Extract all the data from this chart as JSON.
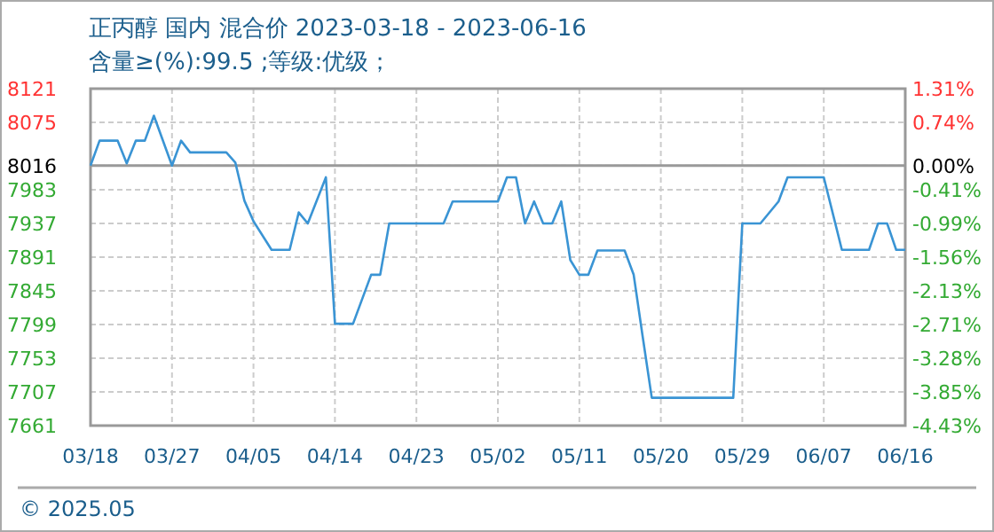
{
  "chart_data": {
    "type": "line",
    "title": "正丙醇 国内 混合价 2023-03-18 - 2023-06-16",
    "subtitle": "含量≥(%):99.5 ;等级:优级；",
    "annotations": [
      "© 2025.05"
    ],
    "x": [
      "2023-03-18",
      "2023-03-19",
      "2023-03-21",
      "2023-03-22",
      "2023-03-23",
      "2023-03-24",
      "2023-03-25",
      "2023-03-27",
      "2023-03-28",
      "2023-03-29",
      "2023-04-02",
      "2023-04-03",
      "2023-04-04",
      "2023-04-05",
      "2023-04-07",
      "2023-04-09",
      "2023-04-10",
      "2023-04-11",
      "2023-04-13",
      "2023-04-14",
      "2023-04-16",
      "2023-04-18",
      "2023-04-19",
      "2023-04-20",
      "2023-04-26",
      "2023-04-27",
      "2023-05-02",
      "2023-05-03",
      "2023-05-04",
      "2023-05-05",
      "2023-05-06",
      "2023-05-07",
      "2023-05-08",
      "2023-05-09",
      "2023-05-10",
      "2023-05-11",
      "2023-05-12",
      "2023-05-13",
      "2023-05-16",
      "2023-05-17",
      "2023-05-18",
      "2023-05-19",
      "2023-05-28",
      "2023-05-29",
      "2023-05-31",
      "2023-06-02",
      "2023-06-03",
      "2023-06-07",
      "2023-06-09",
      "2023-06-12",
      "2023-06-13",
      "2023-06-14",
      "2023-06-15",
      "2023-06-16"
    ],
    "series": [
      {
        "color": "#3a94d4",
        "values": [
          8016,
          8050,
          8050,
          8019,
          8050,
          8050,
          8084,
          8016,
          8050,
          8034,
          8034,
          8020,
          7968,
          7940,
          7901,
          7901,
          7952,
          7937,
          8000,
          7800,
          7800,
          7867,
          7867,
          7937,
          7937,
          7967,
          7967,
          8000,
          8000,
          7937,
          7967,
          7937,
          7937,
          7967,
          7887,
          7867,
          7867,
          7900,
          7900,
          7867,
          7782,
          7699,
          7699,
          7937,
          7937,
          7967,
          8000,
          8000,
          7901,
          7901,
          7937,
          7937,
          7901,
          7901
        ]
      }
    ],
    "xlim": [
      "2023-03-18",
      "2023-06-16"
    ],
    "xticks": [
      {
        "value": "2023-03-18",
        "label": "03/18"
      },
      {
        "value": "2023-03-27",
        "label": "03/27"
      },
      {
        "value": "2023-04-05",
        "label": "04/05"
      },
      {
        "value": "2023-04-14",
        "label": "04/14"
      },
      {
        "value": "2023-04-23",
        "label": "04/23"
      },
      {
        "value": "2023-05-02",
        "label": "05/02"
      },
      {
        "value": "2023-05-11",
        "label": "05/11"
      },
      {
        "value": "2023-05-20",
        "label": "05/20"
      },
      {
        "value": "2023-05-29",
        "label": "05/29"
      },
      {
        "value": "2023-06-07",
        "label": "06/07"
      },
      {
        "value": "2023-06-16",
        "label": "06/16"
      }
    ],
    "ylim": [
      7661,
      8121
    ],
    "yticks": [
      7661,
      7707,
      7753,
      7799,
      7845,
      7891,
      7937,
      7983,
      8016,
      8075,
      8121
    ],
    "y2lim": [
      -4.43,
      1.31
    ],
    "y2ticks": [
      {
        "value": -4.43,
        "label": "-4.43%"
      },
      {
        "value": -3.85,
        "label": "-3.85%"
      },
      {
        "value": -3.28,
        "label": "-3.28%"
      },
      {
        "value": -2.71,
        "label": "-2.71%"
      },
      {
        "value": -2.13,
        "label": "-2.13%"
      },
      {
        "value": -1.56,
        "label": "-1.56%"
      },
      {
        "value": -0.99,
        "label": "-0.99%"
      },
      {
        "value": -0.41,
        "label": "-0.41%"
      },
      {
        "value": 0,
        "label": "0.00%"
      },
      {
        "value": 0.74,
        "label": "0.74%"
      },
      {
        "value": 1.31,
        "label": "1.31%"
      }
    ],
    "ref_lines": [
      {
        "axis": "y",
        "value": 8016,
        "color": "#999999"
      }
    ],
    "grid": true,
    "marker": "none",
    "line_style": "solid"
  }
}
